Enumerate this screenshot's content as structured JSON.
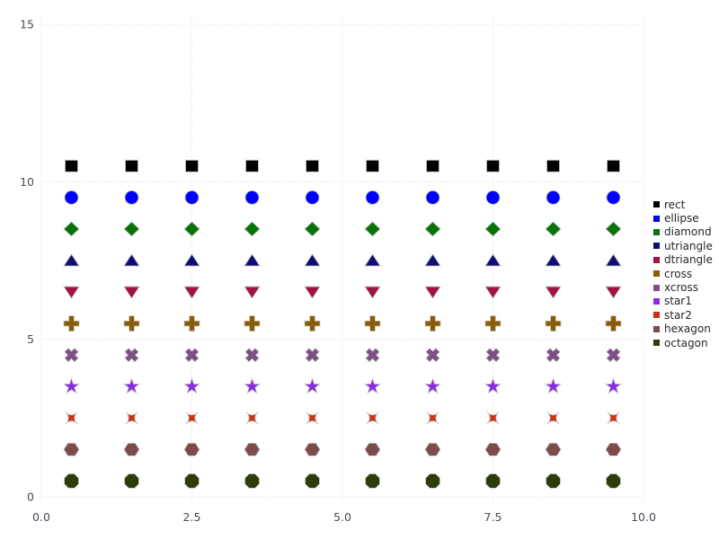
{
  "chart_data": {
    "type": "scatter",
    "title": "",
    "xlabel": "",
    "ylabel": "",
    "xlim": [
      0,
      10
    ],
    "ylim": [
      0,
      15
    ],
    "x_ticks": {
      "values": [
        0,
        2.5,
        5,
        7.5,
        10
      ],
      "labels": [
        "0.0",
        "2.5",
        "5.0",
        "7.5",
        "10.0"
      ]
    },
    "y_ticks": {
      "values": [
        0,
        5,
        10,
        15
      ],
      "labels": [
        "0",
        "5",
        "10",
        "15"
      ]
    },
    "grid": {
      "style": "dashed",
      "color": "#d7d7e0",
      "on": true
    },
    "legend_position": "right-outside",
    "points_per_series": 10,
    "x": [
      0.5,
      1.5,
      2.5,
      3.5,
      4.5,
      5.5,
      6.5,
      7.5,
      8.5,
      9.5
    ],
    "series": [
      {
        "name": "rect",
        "marker": "rect",
        "color": "#000000",
        "y": 10.5
      },
      {
        "name": "ellipse",
        "marker": "ellipse",
        "color": "#0000ff",
        "y": 9.5
      },
      {
        "name": "diamond",
        "marker": "diamond",
        "color": "#077307",
        "y": 8.5
      },
      {
        "name": "utriangle",
        "marker": "utriangle",
        "color": "#0f0f73",
        "y": 7.5
      },
      {
        "name": "dtriangle",
        "marker": "dtriangle",
        "color": "#a21243",
        "y": 6.5
      },
      {
        "name": "cross",
        "marker": "cross",
        "color": "#8a5c08",
        "y": 5.5
      },
      {
        "name": "xcross",
        "marker": "xcross",
        "color": "#7d4f85",
        "y": 4.5
      },
      {
        "name": "star1",
        "marker": "star1",
        "color": "#8a2be2",
        "y": 3.5
      },
      {
        "name": "star2",
        "marker": "star2",
        "color": "#cc3310",
        "y": 2.5
      },
      {
        "name": "hexagon",
        "marker": "hexagon",
        "color": "#7d4b4b",
        "y": 1.5
      },
      {
        "name": "octagon",
        "marker": "octagon",
        "color": "#2e3c09",
        "y": 0.5
      }
    ],
    "colors": {
      "background": "#ffffff",
      "grid": "#d7d7e0",
      "tick_label": "#4a4a55",
      "legend_text": "#26262b",
      "marker_outline": "#c4c4c4"
    }
  }
}
